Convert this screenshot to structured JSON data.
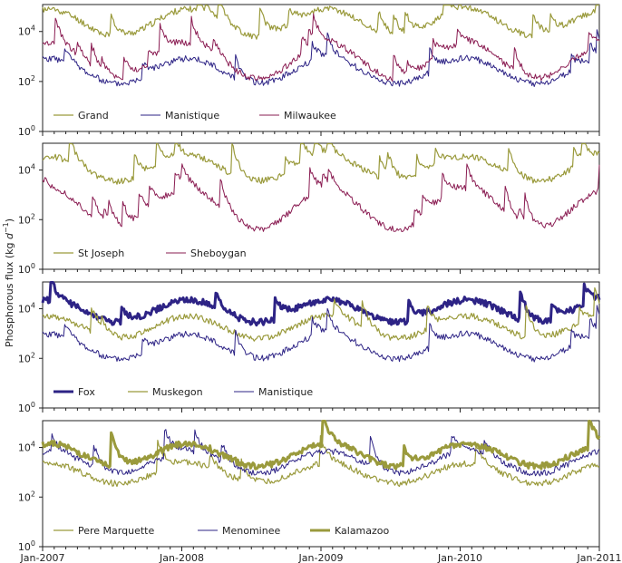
{
  "chart_data": [
    {
      "type": "line",
      "yscale": "log",
      "ylim": [
        1,
        120000
      ],
      "yticks": [
        {
          "base": "10",
          "exp": "0"
        },
        {
          "base": "10",
          "exp": "2"
        },
        {
          "base": "10",
          "exp": "4"
        }
      ],
      "legend_position": "bottom-left",
      "series": [
        {
          "name": "Grand",
          "color": "#9a9a3c",
          "width": 1.2,
          "level": 22000,
          "var": 0.55,
          "spike": 0.025,
          "seed": 11
        },
        {
          "name": "Manistique",
          "color": "#2d2385",
          "width": 1.0,
          "level": 260,
          "var": 0.5,
          "spike": 0.02,
          "seed": 23
        },
        {
          "name": "Milwaukee",
          "color": "#8a1c52",
          "width": 1.0,
          "level": 650,
          "var": 0.7,
          "spike": 0.04,
          "seed": 37
        }
      ]
    },
    {
      "type": "line",
      "yscale": "log",
      "ylim": [
        1,
        120000
      ],
      "yticks": [
        {
          "base": "10",
          "exp": "0"
        },
        {
          "base": "10",
          "exp": "2"
        },
        {
          "base": "10",
          "exp": "4"
        }
      ],
      "legend_position": "bottom-left",
      "series": [
        {
          "name": "St Joseph",
          "color": "#9a9a3c",
          "width": 1.2,
          "level": 11000,
          "var": 0.5,
          "spike": 0.025,
          "seed": 53
        },
        {
          "name": "Sheboygan",
          "color": "#8a1c52",
          "width": 1.0,
          "level": 260,
          "var": 0.8,
          "spike": 0.045,
          "seed": 71
        }
      ]
    },
    {
      "type": "line",
      "yscale": "log",
      "ylim": [
        1,
        120000
      ],
      "yticks": [
        {
          "base": "10",
          "exp": "0"
        },
        {
          "base": "10",
          "exp": "2"
        },
        {
          "base": "10",
          "exp": "4"
        }
      ],
      "legend_position": "bottom-left",
      "series": [
        {
          "name": "Fox",
          "color": "#2d2385",
          "width": 3.0,
          "level": 8000,
          "var": 0.45,
          "spike": 0.015,
          "seed": 89
        },
        {
          "name": "Muskegon",
          "color": "#9a9a3c",
          "width": 1.2,
          "level": 1800,
          "var": 0.45,
          "spike": 0.02,
          "seed": 97
        },
        {
          "name": "Manistique",
          "color": "#2d2385",
          "width": 1.0,
          "level": 300,
          "var": 0.5,
          "spike": 0.02,
          "seed": 23
        }
      ]
    },
    {
      "type": "line",
      "yscale": "log",
      "ylim": [
        1,
        120000
      ],
      "yticks": [
        {
          "base": "10",
          "exp": "0"
        },
        {
          "base": "10",
          "exp": "2"
        },
        {
          "base": "10",
          "exp": "4"
        }
      ],
      "legend_position": "bottom-left",
      "series": [
        {
          "name": "Pere Marquette",
          "color": "#9a9a3c",
          "width": 1.2,
          "level": 900,
          "var": 0.4,
          "spike": 0.02,
          "seed": 103
        },
        {
          "name": "Menominee",
          "color": "#2d2385",
          "width": 1.0,
          "level": 2500,
          "var": 0.45,
          "spike": 0.02,
          "seed": 113
        },
        {
          "name": "Kalamazoo",
          "color": "#9a9a3c",
          "width": 3.0,
          "level": 5000,
          "var": 0.45,
          "spike": 0.02,
          "seed": 127
        }
      ]
    }
  ],
  "x_axis": {
    "start": "Jan-2007",
    "end": "Jan-2011",
    "ticks": [
      "Jan-2007",
      "Jan-2008",
      "Jan-2009",
      "Jan-2010",
      "Jan-2011"
    ]
  },
  "ylabel": {
    "text": "Phosphorous flux (kg ",
    "var": "d",
    "exp": "−1",
    "close": ")"
  }
}
